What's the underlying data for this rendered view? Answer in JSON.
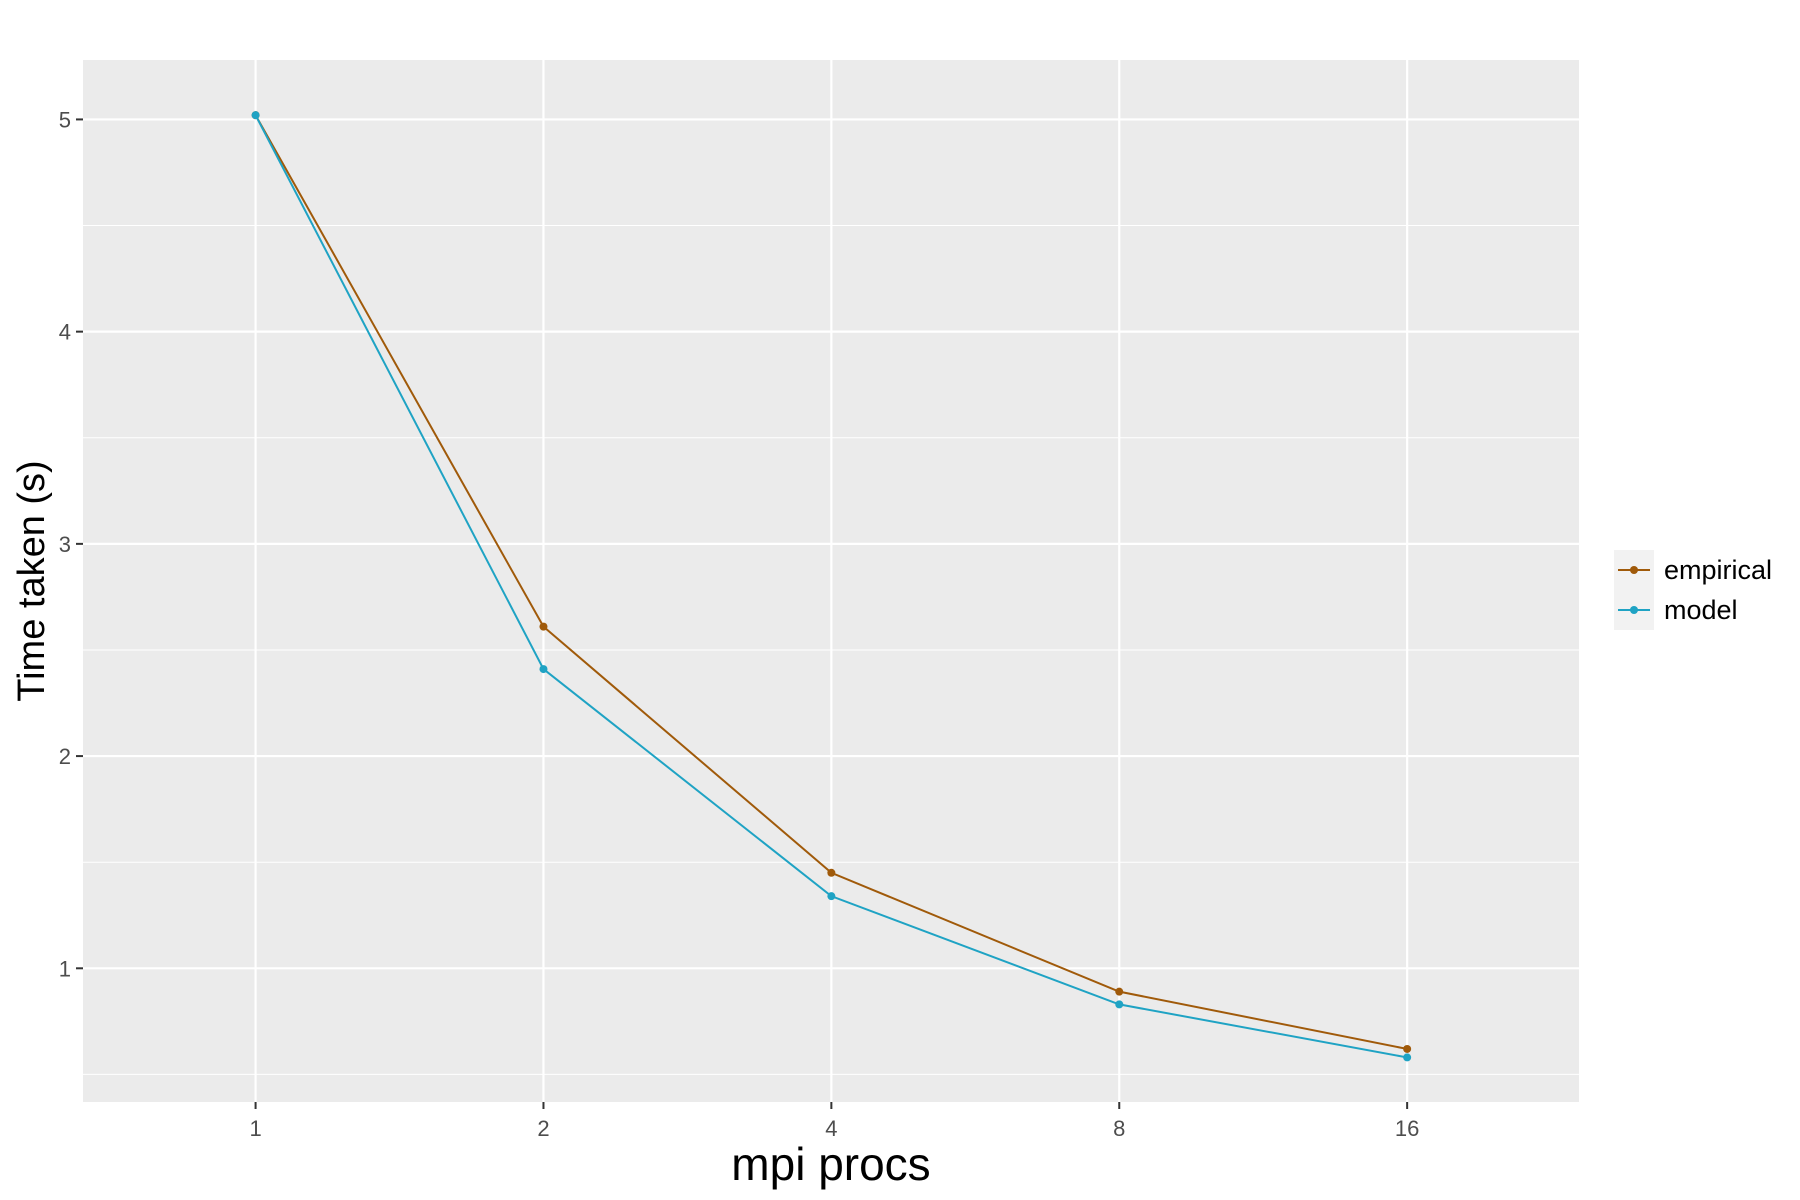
{
  "chart_data": {
    "type": "line",
    "title": "",
    "xlabel": "mpi procs",
    "ylabel": "Time taken (s)",
    "x_scale": "log2",
    "x": [
      1,
      2,
      4,
      8,
      16
    ],
    "x_tick_labels": [
      "1",
      "2",
      "4",
      "8",
      "16"
    ],
    "xlim": [
      0.66,
      24.2
    ],
    "ylim": [
      0.37,
      5.28
    ],
    "y_ticks": [
      1,
      2,
      3,
      4,
      5
    ],
    "y_tick_labels": [
      "1",
      "2",
      "3",
      "4",
      "5"
    ],
    "grid": true,
    "legend_position": "right",
    "series": [
      {
        "name": "empirical",
        "color": "#a05a0a",
        "values": [
          5.02,
          2.61,
          1.45,
          0.89,
          0.62
        ]
      },
      {
        "name": "model",
        "color": "#1fa3c4",
        "values": [
          5.02,
          2.41,
          1.34,
          0.83,
          0.58
        ]
      }
    ]
  }
}
